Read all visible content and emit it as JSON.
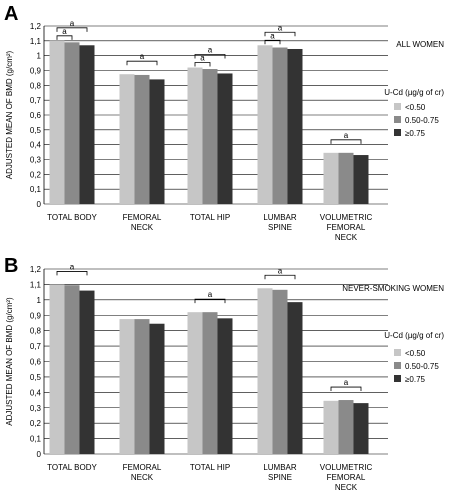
{
  "colors": {
    "s0": "#c6c6c6",
    "s1": "#8a8a8a",
    "s2": "#333333",
    "grid": "#000000"
  },
  "chart_data": [
    {
      "type": "bar",
      "panel": "A",
      "title": "ALL WOMEN",
      "ylabel": "ADJUSTED MEAN OF BMD (g/cm²)",
      "ylim": [
        0,
        1.2
      ],
      "yticks": [
        "0",
        "0,1",
        "0,2",
        "0,3",
        "0,4",
        "0,5",
        "0,6",
        "0,7",
        "0,8",
        "0,9",
        "1",
        "1,1",
        "1,2"
      ],
      "categories": [
        [
          "TOTAL BODY"
        ],
        [
          "FEMORAL",
          "NECK"
        ],
        [
          "TOTAL HIP"
        ],
        [
          "LUMBAR",
          "SPINE"
        ],
        [
          "VOLUMETRIC",
          "FEMORAL",
          "NECK"
        ]
      ],
      "legend_title": "U-Cd (µg/g of cr)",
      "series": [
        {
          "name": "<0.50",
          "values": [
            1.1,
            0.875,
            0.92,
            1.07,
            0.345
          ]
        },
        {
          "name": "0.50-0.75",
          "values": [
            1.09,
            0.87,
            0.91,
            1.055,
            0.345
          ]
        },
        {
          "name": "≥0.75",
          "values": [
            1.07,
            0.84,
            0.88,
            1.045,
            0.33
          ]
        }
      ],
      "significance": [
        {
          "label": "a",
          "category": 0,
          "from": 0,
          "to": 2
        },
        {
          "label": "a",
          "category": 0,
          "from": 0,
          "to": 1
        },
        {
          "label": "a",
          "category": 1,
          "from": 0,
          "to": 2
        },
        {
          "label": "a",
          "category": 2,
          "from": 0,
          "to": 2
        },
        {
          "label": "a",
          "category": 2,
          "from": 0,
          "to": 1
        },
        {
          "label": "a",
          "category": 3,
          "from": 0,
          "to": 2
        },
        {
          "label": "a",
          "category": 3,
          "from": 0,
          "to": 1
        },
        {
          "label": "a",
          "category": 4,
          "from": 0,
          "to": 2
        }
      ]
    },
    {
      "type": "bar",
      "panel": "B",
      "title": "NEVER-SMOKING WOMEN",
      "ylabel": "ADJUSTED MEAN OF BMD (g/cm²)",
      "ylim": [
        0,
        1.2
      ],
      "yticks": [
        "0",
        "0,1",
        "0,2",
        "0,3",
        "0,4",
        "0,5",
        "0,6",
        "0,7",
        "0,8",
        "0,9",
        "1",
        "1,1",
        "1,2"
      ],
      "categories": [
        [
          "TOTAL BODY"
        ],
        [
          "FEMORAL",
          "NECK"
        ],
        [
          "TOTAL HIP"
        ],
        [
          "LUMBAR",
          "SPINE"
        ],
        [
          "VOLUMETRIC",
          "FEMORAL",
          "NECK"
        ]
      ],
      "legend_title": "U-Cd (µg/g of cr)",
      "series": [
        {
          "name": "<0.50",
          "values": [
            1.1,
            0.875,
            0.92,
            1.075,
            0.345
          ]
        },
        {
          "name": "0.50-0.75",
          "values": [
            1.095,
            0.875,
            0.92,
            1.065,
            0.35
          ]
        },
        {
          "name": "≥0.75",
          "values": [
            1.06,
            0.845,
            0.88,
            0.985,
            0.33
          ]
        }
      ],
      "significance": [
        {
          "label": "a",
          "category": 0,
          "from": 0,
          "to": 2
        },
        {
          "label": "a",
          "category": 2,
          "from": 0,
          "to": 2
        },
        {
          "label": "a",
          "category": 3,
          "from": 0,
          "to": 2
        },
        {
          "label": "a",
          "category": 4,
          "from": 0,
          "to": 2
        }
      ]
    }
  ]
}
